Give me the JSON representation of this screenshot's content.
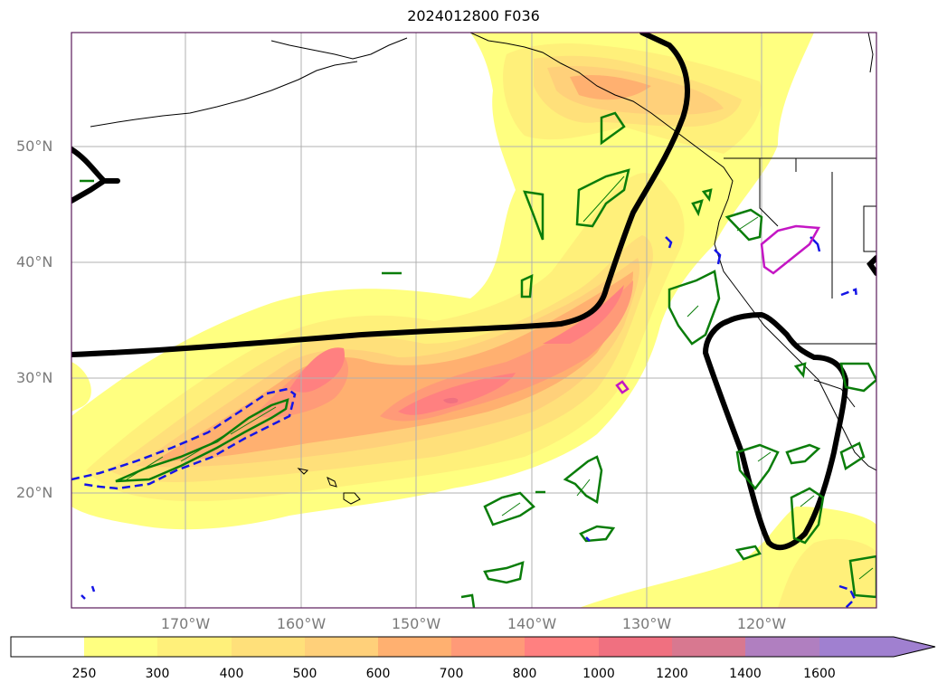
{
  "title": "2024012800 F036",
  "map": {
    "lat_labels": [
      "50°N",
      "40°N",
      "30°N",
      "20°N"
    ],
    "lon_labels": [
      "170°W",
      "160°W",
      "150°W",
      "140°W",
      "130°W",
      "120°W"
    ],
    "colors": {
      "contour_black": "#000000",
      "contour_green": "#0a7d0a",
      "contour_blue": "#1515e6",
      "contour_magenta": "#c416c4",
      "gridline": "#b0b0b0",
      "frame": "#5a1a5a"
    }
  },
  "colorbar": {
    "levels": [
      "250",
      "300",
      "400",
      "500",
      "600",
      "700",
      "800",
      "1000",
      "1200",
      "1400",
      "1600"
    ],
    "colors": [
      "#ffffff",
      "#ffff80",
      "#fff07a",
      "#ffe07a",
      "#ffd07a",
      "#ffb070",
      "#ff9a78",
      "#ff8080",
      "#f07080",
      "#d87890",
      "#b07fc0",
      "#a080d0"
    ],
    "extend": "max"
  }
}
